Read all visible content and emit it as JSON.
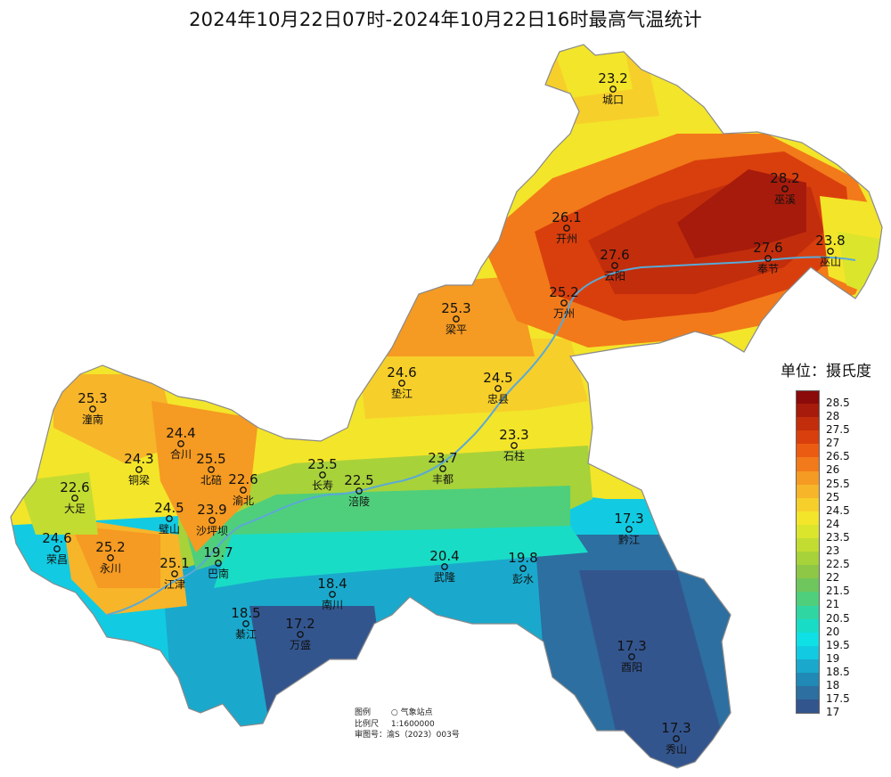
{
  "title": "2024年10月22日07时-2024年10月22日16时最高气温统计",
  "legend": {
    "unit": "单位：摄氏度",
    "entries": [
      {
        "label": "28.5",
        "color": "#8b0a0a"
      },
      {
        "label": "28",
        "color": "#a61b0b"
      },
      {
        "label": "27.5",
        "color": "#c22d0c"
      },
      {
        "label": "27",
        "color": "#d93f0d"
      },
      {
        "label": "26.5",
        "color": "#ec5b12"
      },
      {
        "label": "26",
        "color": "#f27a1a"
      },
      {
        "label": "25.5",
        "color": "#f59a22"
      },
      {
        "label": "25",
        "color": "#f7b52a"
      },
      {
        "label": "24.5",
        "color": "#f7cf2a"
      },
      {
        "label": "24",
        "color": "#f3e52a"
      },
      {
        "label": "23.5",
        "color": "#dbe52c"
      },
      {
        "label": "23",
        "color": "#c2dc32"
      },
      {
        "label": "22.5",
        "color": "#a8d23a"
      },
      {
        "label": "22",
        "color": "#8ec745"
      },
      {
        "label": "21.5",
        "color": "#6fc65c"
      },
      {
        "label": "21",
        "color": "#4fcf7b"
      },
      {
        "label": "20.5",
        "color": "#30d6a2"
      },
      {
        "label": "20",
        "color": "#19dcc6"
      },
      {
        "label": "19.5",
        "color": "#0ee0e6"
      },
      {
        "label": "19",
        "color": "#12cbe2"
      },
      {
        "label": "18.5",
        "color": "#1aa9cc"
      },
      {
        "label": "18",
        "color": "#2089b5"
      },
      {
        "label": "17.5",
        "color": "#2c6fa0"
      },
      {
        "label": "17",
        "color": "#33558e"
      }
    ]
  },
  "map_info": {
    "legend_label": "图例",
    "station_marker_label": "气象站点",
    "scale_label": "比例尺",
    "scale_value": "1:1600000",
    "review_label": "审图号：",
    "review_value": "渝S（2023）003号"
  },
  "stations": [
    {
      "name": "城口",
      "value": "23.2"
    },
    {
      "name": "巫溪",
      "value": "28.2"
    },
    {
      "name": "开州",
      "value": "26.1"
    },
    {
      "name": "云阳",
      "value": "27.6"
    },
    {
      "name": "奉节",
      "value": "27.6"
    },
    {
      "name": "巫山",
      "value": "23.8"
    },
    {
      "name": "万州",
      "value": "25.2"
    },
    {
      "name": "梁平",
      "value": "25.3"
    },
    {
      "name": "垫江",
      "value": "24.6"
    },
    {
      "name": "忠县",
      "value": "24.5"
    },
    {
      "name": "潼南",
      "value": "25.3"
    },
    {
      "name": "合川",
      "value": "24.4"
    },
    {
      "name": "铜梁",
      "value": "24.3"
    },
    {
      "name": "北碚",
      "value": "25.5"
    },
    {
      "name": "渝北",
      "value": "22.6"
    },
    {
      "name": "长寿",
      "value": "23.5"
    },
    {
      "name": "涪陵",
      "value": "22.5"
    },
    {
      "name": "丰都",
      "value": "23.7"
    },
    {
      "name": "石柱",
      "value": "23.3"
    },
    {
      "name": "大足",
      "value": "22.6"
    },
    {
      "name": "璧山",
      "value": "24.5"
    },
    {
      "name": "沙坪坝",
      "value": "23.9"
    },
    {
      "name": "荣昌",
      "value": "24.6"
    },
    {
      "name": "永川",
      "value": "25.2"
    },
    {
      "name": "江津",
      "value": "25.1"
    },
    {
      "name": "巴南",
      "value": "19.7"
    },
    {
      "name": "武隆",
      "value": "20.4"
    },
    {
      "name": "彭水",
      "value": "19.8"
    },
    {
      "name": "黔江",
      "value": "17.3"
    },
    {
      "name": "南川",
      "value": "18.4"
    },
    {
      "name": "綦江",
      "value": "18.5"
    },
    {
      "name": "万盛",
      "value": "17.2"
    },
    {
      "name": "酉阳",
      "value": "17.3"
    },
    {
      "name": "秀山",
      "value": "17.3"
    }
  ]
}
